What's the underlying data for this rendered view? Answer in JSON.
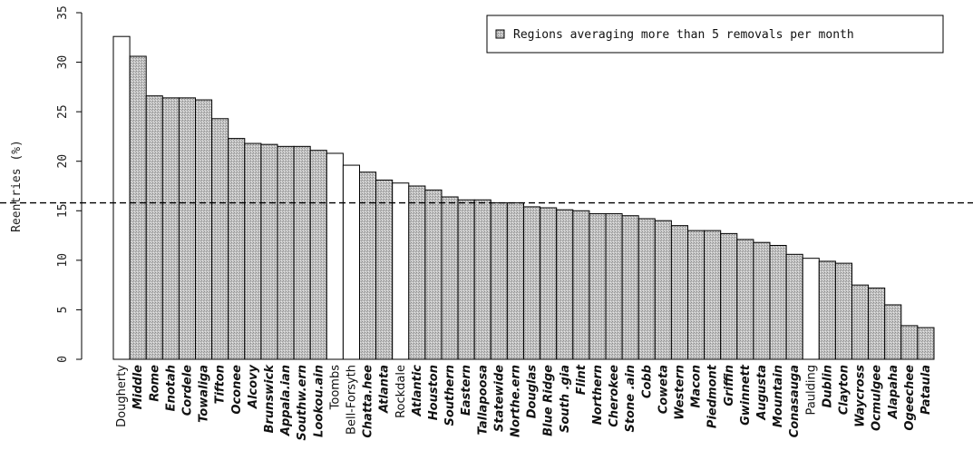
{
  "chart_data": {
    "type": "bar",
    "title": "",
    "xlabel": "",
    "ylabel": "Reentries (%)",
    "ylim": [
      0,
      35
    ],
    "yticks": [
      0,
      5,
      10,
      15,
      20,
      25,
      30,
      35
    ],
    "reference_line": 15.8,
    "legend": {
      "label": "Regions averaging more than 5 removals per month",
      "placement": "top-right"
    },
    "colors": {
      "highlight": "#bdbdbd",
      "other": "#ffffff",
      "stroke": "#000000"
    },
    "categories": [
      "Dougherty",
      "Middle",
      "Rome",
      "Enotah",
      "Cordele",
      "Towaliga",
      "Tifton",
      "Oconee",
      "Alcovy",
      "Brunswick",
      "Appala.ian",
      "Southw.ern",
      "Lookou.ain",
      "Toombs",
      "Bell-Forsyth",
      "Chatta.hee",
      "Atlanta",
      "Rockdale",
      "Atlantic",
      "Houston",
      "Southern",
      "Eastern",
      "Tallapoosa",
      "Statewide",
      "Northe.ern",
      "Douglas",
      "Blue Ridge",
      "South .gia",
      "Flint",
      "Northern",
      "Cherokee",
      "Stone .ain",
      "Cobb",
      "Coweta",
      "Western",
      "Macon",
      "Piedmont",
      "Griffin",
      "Gwinnett",
      "Augusta",
      "Mountain",
      "Conasauga",
      "Paulding",
      "Dublin",
      "Clayton",
      "Waycross",
      "Ocmulgee",
      "Alapaha",
      "Ogeechee",
      "Pataula"
    ],
    "values": [
      32.6,
      30.6,
      26.6,
      26.4,
      26.4,
      26.2,
      24.3,
      22.3,
      21.8,
      21.7,
      21.5,
      21.5,
      21.1,
      20.8,
      19.6,
      18.9,
      18.1,
      17.8,
      17.5,
      17.1,
      16.4,
      16.1,
      16.1,
      15.8,
      15.8,
      15.4,
      15.3,
      15.1,
      15.0,
      14.7,
      14.7,
      14.5,
      14.2,
      14.0,
      13.5,
      13.0,
      13.0,
      12.7,
      12.1,
      11.8,
      11.5,
      10.6,
      10.2,
      9.9,
      9.7,
      7.5,
      7.2,
      5.5,
      3.4,
      3.2
    ],
    "highlighted": [
      false,
      true,
      true,
      true,
      true,
      true,
      true,
      true,
      true,
      true,
      true,
      true,
      true,
      false,
      false,
      true,
      true,
      false,
      true,
      true,
      true,
      true,
      true,
      true,
      true,
      true,
      true,
      true,
      true,
      true,
      true,
      true,
      true,
      true,
      true,
      true,
      true,
      true,
      true,
      true,
      true,
      true,
      false,
      true,
      true,
      true,
      true,
      true,
      true,
      true
    ]
  }
}
